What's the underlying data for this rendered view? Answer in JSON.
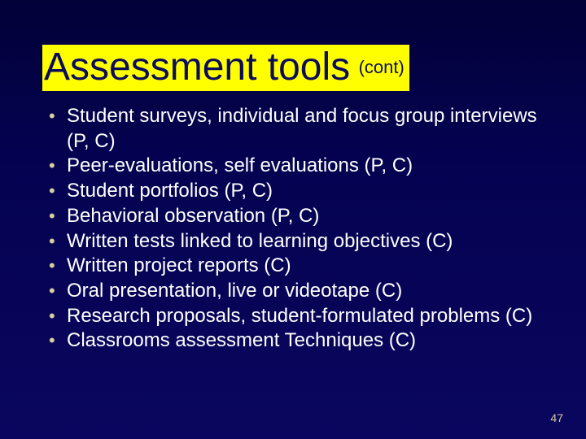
{
  "title": {
    "main": "Assessment tools",
    "cont": "(cont)",
    "highlight_bg": "#ffff00",
    "text_color": "#0b0c5c",
    "main_fontsize": 48,
    "cont_fontsize": 22
  },
  "bullets": {
    "items": [
      "Student surveys, individual and focus group interviews (P, C)",
      "Peer-evaluations, self evaluations (P, C)",
      "Student portfolios (P, C)",
      "Behavioral observation (P, C)",
      "Written tests linked to learning objectives (C)",
      "Written project reports (C)",
      "Oral presentation, live or videotape (C)",
      "Research proposals, student-formulated problems (C)",
      "Classrooms assessment Techniques (C)"
    ],
    "text_color": "#ffffff",
    "bullet_marker_color": "#d6cf9d",
    "fontsize": 24
  },
  "background": {
    "gradient_top": "#020138",
    "gradient_mid": "#040250",
    "gradient_bottom": "#0a065f"
  },
  "page_number": {
    "value": "47",
    "color": "#d6cf9d",
    "fontsize": 14
  }
}
